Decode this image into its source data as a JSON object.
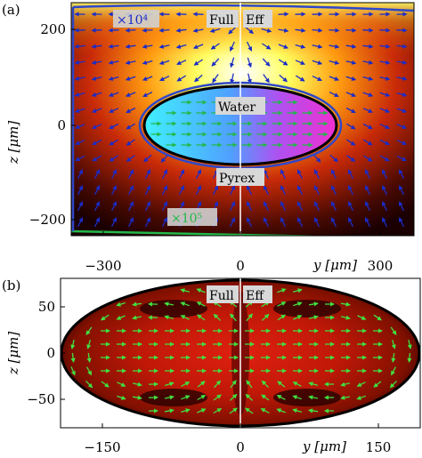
{
  "panels": [
    {
      "letter": "(a)",
      "xlabel": "y [μm]",
      "ylabel": "z [μm]",
      "xticks": [
        "−300",
        "0",
        "300"
      ],
      "yticks": [
        "200",
        "0",
        "−200"
      ],
      "left_label": "Full",
      "right_label": "Eff",
      "blue_scale": "×10⁴",
      "green_scale": "×10⁵",
      "region_inner": "Water",
      "region_outer": "Pyrex"
    },
    {
      "letter": "(b)",
      "xlabel": "y [μm]",
      "ylabel": "z [μm]",
      "xticks": [
        "−150",
        "0",
        "150"
      ],
      "yticks": [
        "50",
        "0",
        "−50"
      ],
      "left_label": "Full",
      "right_label": "Eff"
    }
  ],
  "colors": {
    "heat_hot": "#ffff40",
    "heat_mid": "#e04010",
    "heat_dark": "#200000",
    "water_left": "#30e0ff",
    "water_right": "#e040e0",
    "arrow_blue": "#1a2cc8",
    "arrow_green": "#23b84a",
    "arrow_lime": "#40e040"
  }
}
